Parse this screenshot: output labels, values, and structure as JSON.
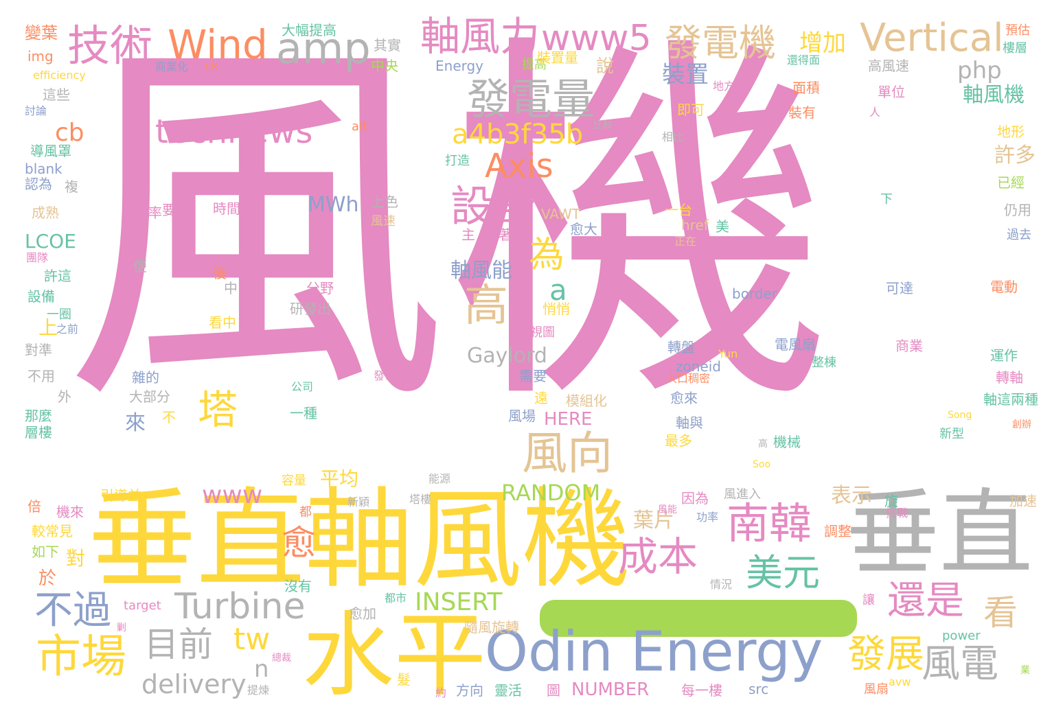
{
  "palette": {
    "pink": "#e58ac2",
    "yellow": "#fed83b",
    "gray": "#b3b3b3",
    "green": "#66c2a5",
    "blue": "#8da0cb",
    "orange": "#fc8d62",
    "lime": "#a6d854",
    "tan": "#e5c494",
    "background": "#ffffff"
  },
  "words": [
    {
      "text": "風機",
      "color": "pink"
    },
    {
      "text": "垂直軸風機",
      "color": "yellow"
    },
    {
      "text": "垂直",
      "color": "gray"
    },
    {
      "text": "水平",
      "color": "yellow"
    },
    {
      "text": "Odin Energy",
      "color": "blue"
    },
    {
      "text": "技術",
      "color": "pink"
    },
    {
      "text": "Wind",
      "color": "orange"
    },
    {
      "text": "amp",
      "color": "gray"
    },
    {
      "text": "軸風力",
      "color": "pink"
    },
    {
      "text": "www5",
      "color": "pink"
    },
    {
      "text": "發電機",
      "color": "tan"
    },
    {
      "text": "Vertical",
      "color": "tan"
    },
    {
      "text": "發電量",
      "color": "gray"
    },
    {
      "text": "technews",
      "color": "pink"
    },
    {
      "text": "a4b3f35b",
      "color": "yellow"
    },
    {
      "text": "Axis",
      "color": "orange"
    },
    {
      "text": "設計",
      "color": "pink"
    },
    {
      "text": "為",
      "color": "yellow"
    },
    {
      "text": "高",
      "color": "tan"
    },
    {
      "text": "風向",
      "color": "tan"
    },
    {
      "text": "塔",
      "color": "yellow"
    },
    {
      "text": "南韓",
      "color": "pink"
    },
    {
      "text": "成本",
      "color": "pink"
    },
    {
      "text": "美元",
      "color": "green"
    },
    {
      "text": "還是",
      "color": "pink"
    },
    {
      "text": "看",
      "color": "tan"
    },
    {
      "text": "Turbine",
      "color": "gray"
    },
    {
      "text": "目前",
      "color": "gray"
    },
    {
      "text": "市場",
      "color": "yellow"
    },
    {
      "text": "不過",
      "color": "blue"
    },
    {
      "text": "tw",
      "color": "yellow"
    },
    {
      "text": "愈",
      "color": "orange"
    },
    {
      "text": "www",
      "color": "pink"
    },
    {
      "text": "RANDOM",
      "color": "lime"
    },
    {
      "text": "INSERT",
      "color": "lime"
    },
    {
      "text": "Gaylord",
      "color": "gray"
    },
    {
      "text": "發展",
      "color": "yellow"
    },
    {
      "text": "風電",
      "color": "gray"
    },
    {
      "text": "delivery",
      "color": "gray"
    },
    {
      "text": "n",
      "color": "gray"
    },
    {
      "text": "a",
      "color": "green"
    },
    {
      "text": "cb",
      "color": "orange"
    },
    {
      "text": "php",
      "color": "gray"
    },
    {
      "text": "增加",
      "color": "yellow"
    },
    {
      "text": "裝置",
      "color": "blue"
    },
    {
      "text": "軸風機",
      "color": "green"
    },
    {
      "text": "許多",
      "color": "tan"
    },
    {
      "text": "軸風能",
      "color": "blue"
    },
    {
      "text": "MWh",
      "color": "blue"
    },
    {
      "text": "LCOE",
      "color": "green"
    },
    {
      "text": "平均",
      "color": "yellow"
    },
    {
      "text": "葉片",
      "color": "tan"
    },
    {
      "text": "表示",
      "color": "tan"
    },
    {
      "text": "HERE",
      "color": "pink"
    },
    {
      "text": "NUMBER",
      "color": "pink"
    },
    {
      "text": "對",
      "color": "yellow"
    },
    {
      "text": "於",
      "color": "orange"
    },
    {
      "text": "來",
      "color": "blue"
    },
    {
      "text": "上",
      "color": "yellow"
    },
    {
      "text": "說",
      "color": "tan"
    },
    {
      "text": "Energy",
      "color": "blue"
    },
    {
      "text": "中央",
      "color": "lime"
    },
    {
      "text": "其實",
      "color": "gray"
    },
    {
      "text": "大幅提高",
      "color": "green"
    },
    {
      "text": "變葉",
      "color": "orange"
    },
    {
      "text": "img",
      "color": "orange"
    },
    {
      "text": "efficiency",
      "color": "yellow"
    },
    {
      "text": "這些",
      "color": "gray"
    },
    {
      "text": "討論",
      "color": "blue"
    },
    {
      "text": "導風罩",
      "color": "green"
    },
    {
      "text": "blank",
      "color": "blue"
    },
    {
      "text": "認為",
      "color": "blue"
    },
    {
      "text": "複",
      "color": "gray"
    },
    {
      "text": "成熟",
      "color": "tan"
    },
    {
      "text": "團隊",
      "color": "pink"
    },
    {
      "text": "許這",
      "color": "green"
    },
    {
      "text": "設備",
      "color": "green"
    },
    {
      "text": "一圈",
      "color": "green"
    },
    {
      "text": "之前",
      "color": "blue"
    },
    {
      "text": "對準",
      "color": "gray"
    },
    {
      "text": "不用",
      "color": "gray"
    },
    {
      "text": "外",
      "color": "gray"
    },
    {
      "text": "那麼",
      "color": "green"
    },
    {
      "text": "層樓",
      "color": "green"
    },
    {
      "text": "倍",
      "color": "orange"
    },
    {
      "text": "機來",
      "color": "pink"
    },
    {
      "text": "較常見",
      "color": "yellow"
    },
    {
      "text": "如下",
      "color": "lime"
    },
    {
      "text": "引導並",
      "color": "yellow"
    },
    {
      "text": "target",
      "color": "pink"
    },
    {
      "text": "剿",
      "color": "pink"
    },
    {
      "text": "商業化",
      "color": "blue"
    },
    {
      "text": "ck",
      "color": "orange"
    },
    {
      "text": "提高",
      "color": "lime"
    },
    {
      "text": "裝置量",
      "color": "yellow"
    },
    {
      "text": "alt",
      "color": "orange"
    },
    {
      "text": "打造",
      "color": "green"
    },
    {
      "text": "比較",
      "color": "gray"
    },
    {
      "text": "效率",
      "color": "pink"
    },
    {
      "text": "要求",
      "color": "pink"
    },
    {
      "text": "時間",
      "color": "pink"
    },
    {
      "text": "上色",
      "color": "gray"
    },
    {
      "text": "風速",
      "color": "tan"
    },
    {
      "text": "VAWT",
      "color": "tan"
    },
    {
      "text": "愈大",
      "color": "blue"
    },
    {
      "text": "主",
      "color": "pink"
    },
    {
      "text": "隨著",
      "color": "pink"
    },
    {
      "text": "便",
      "color": "gray"
    },
    {
      "text": "後",
      "color": "orange"
    },
    {
      "text": "中",
      "color": "gray"
    },
    {
      "text": "分野",
      "color": "pink"
    },
    {
      "text": "研發出",
      "color": "gray"
    },
    {
      "text": "看中",
      "color": "yellow"
    },
    {
      "text": "悄悄",
      "color": "yellow"
    },
    {
      "text": "側視圖",
      "color": "pink"
    },
    {
      "text": "需要",
      "color": "blue"
    },
    {
      "text": "雜的",
      "color": "blue"
    },
    {
      "text": "大部分",
      "color": "gray"
    },
    {
      "text": "不",
      "color": "yellow"
    },
    {
      "text": "一種",
      "color": "green"
    },
    {
      "text": "公司",
      "color": "green"
    },
    {
      "text": "發電",
      "color": "pink"
    },
    {
      "text": "遠",
      "color": "yellow"
    },
    {
      "text": "模組化",
      "color": "tan"
    },
    {
      "text": "風場",
      "color": "blue"
    },
    {
      "text": "容量",
      "color": "yellow"
    },
    {
      "text": "能源",
      "color": "gray"
    },
    {
      "text": "新穎",
      "color": "gray"
    },
    {
      "text": "塔樓",
      "color": "gray"
    },
    {
      "text": "都",
      "color": "orange"
    },
    {
      "text": "沒有",
      "color": "green"
    },
    {
      "text": "愈加",
      "color": "gray"
    },
    {
      "text": "都市",
      "color": "green"
    },
    {
      "text": "隨風旋轉",
      "color": "tan"
    },
    {
      "text": "髮",
      "color": "yellow"
    },
    {
      "text": "約",
      "color": "pink"
    },
    {
      "text": "方向",
      "color": "blue"
    },
    {
      "text": "靈活",
      "color": "green"
    },
    {
      "text": "圖",
      "color": "pink"
    },
    {
      "text": "提煉",
      "color": "gray"
    },
    {
      "text": "總裁",
      "color": "pink"
    },
    {
      "text": "相比",
      "color": "gray"
    },
    {
      "text": "一台",
      "color": "yellow"
    },
    {
      "text": "美",
      "color": "green"
    },
    {
      "text": "href",
      "color": "tan"
    },
    {
      "text": "正在",
      "color": "tan"
    },
    {
      "text": "即可",
      "color": "yellow"
    },
    {
      "text": "地方",
      "color": "pink"
    },
    {
      "text": "還得面",
      "color": "green"
    },
    {
      "text": "高風速",
      "color": "gray"
    },
    {
      "text": "面積",
      "color": "orange"
    },
    {
      "text": "單位",
      "color": "pink"
    },
    {
      "text": "裝有",
      "color": "orange"
    },
    {
      "text": "人",
      "color": "pink"
    },
    {
      "text": "預估",
      "color": "orange"
    },
    {
      "text": "樓層",
      "color": "green"
    },
    {
      "text": "地形",
      "color": "yellow"
    },
    {
      "text": "已經",
      "color": "lime"
    },
    {
      "text": "下",
      "color": "green"
    },
    {
      "text": "仍用",
      "color": "gray"
    },
    {
      "text": "過去",
      "color": "blue"
    },
    {
      "text": "電動",
      "color": "orange"
    },
    {
      "text": "可達",
      "color": "blue"
    },
    {
      "text": "border",
      "color": "blue"
    },
    {
      "text": "轉盤",
      "color": "blue"
    },
    {
      "text": "Yun",
      "color": "yellow"
    },
    {
      "text": "電風扇",
      "color": "blue"
    },
    {
      "text": "整棟",
      "color": "green"
    },
    {
      "text": "商業",
      "color": "pink"
    },
    {
      "text": "zoneid",
      "color": "blue"
    },
    {
      "text": "人口稠密",
      "color": "orange"
    },
    {
      "text": "愈來",
      "color": "blue"
    },
    {
      "text": "運作",
      "color": "green"
    },
    {
      "text": "轉軸",
      "color": "pink"
    },
    {
      "text": "軸這兩種",
      "color": "green"
    },
    {
      "text": "軸與",
      "color": "blue"
    },
    {
      "text": "最多",
      "color": "yellow"
    },
    {
      "text": "機械",
      "color": "green"
    },
    {
      "text": "高",
      "color": "gray"
    },
    {
      "text": "Song",
      "color": "yellow"
    },
    {
      "text": "新型",
      "color": "green"
    },
    {
      "text": "創辦",
      "color": "orange"
    },
    {
      "text": "Soo",
      "color": "yellow"
    },
    {
      "text": "因為",
      "color": "pink"
    },
    {
      "text": "風進入",
      "color": "gray"
    },
    {
      "text": "功率",
      "color": "blue"
    },
    {
      "text": "風能",
      "color": "pink"
    },
    {
      "text": "旋",
      "color": "green"
    },
    {
      "text": "挑戰",
      "color": "pink"
    },
    {
      "text": "調整",
      "color": "orange"
    },
    {
      "text": "加速",
      "color": "tan"
    },
    {
      "text": "情況",
      "color": "gray"
    },
    {
      "text": "讓",
      "color": "pink"
    },
    {
      "text": "power",
      "color": "green"
    },
    {
      "text": "src",
      "color": "blue"
    },
    {
      "text": "avw",
      "color": "yellow"
    },
    {
      "text": "每一樓",
      "color": "pink"
    },
    {
      "text": "風扇",
      "color": "orange"
    },
    {
      "text": "業",
      "color": "lime"
    }
  ]
}
